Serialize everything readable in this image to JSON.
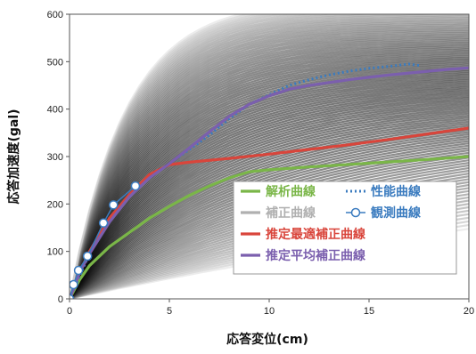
{
  "chart_data": {
    "type": "line",
    "title": "",
    "xlabel": "応答変位(cm)",
    "ylabel": "応答加速度(gal)",
    "xlim": [
      0,
      20
    ],
    "ylim": [
      0,
      600
    ],
    "xticks": [
      0,
      5,
      10,
      15,
      20
    ],
    "yticks": [
      0,
      100,
      200,
      300,
      400,
      500,
      600
    ],
    "xtick_labels": [
      "0",
      "5",
      "10",
      "15",
      "20"
    ],
    "ytick_labels": [
      "0",
      "100",
      "200",
      "300",
      "400",
      "500",
      "600"
    ],
    "grid": false,
    "legend_position": "bottom-right",
    "legend_entries": [
      {
        "name": "解析曲線",
        "style": "solid",
        "color": "#7ab648"
      },
      {
        "name": "性能曲線",
        "style": "dotted",
        "color": "#3a7bbf"
      },
      {
        "name": "補正曲線",
        "style": "solid",
        "color": "#b0b0b0"
      },
      {
        "name": "観測曲線",
        "style": "circle-line",
        "color": "#3a7bbf"
      },
      {
        "name": "推定最適補正曲線",
        "style": "solid",
        "color": "#d9453b"
      },
      {
        "name": "推定平均補正曲線",
        "style": "solid",
        "color": "#7b5fae"
      }
    ],
    "series": [
      {
        "name": "解析曲線",
        "color": "#7ab648",
        "x": [
          0,
          0.5,
          1,
          2,
          3,
          4,
          5,
          6,
          7,
          8,
          9,
          10,
          12,
          15,
          18,
          20
        ],
        "y": [
          0,
          40,
          70,
          110,
          140,
          170,
          195,
          218,
          238,
          255,
          268,
          272,
          278,
          286,
          294,
          300
        ]
      },
      {
        "name": "性能曲線",
        "color": "#3a7bbf",
        "x": [
          0,
          1,
          2,
          3,
          4,
          5,
          6,
          7,
          8,
          9,
          10,
          11,
          12,
          13,
          14,
          15,
          16,
          17,
          17.5
        ],
        "y": [
          0,
          95,
          165,
          220,
          255,
          285,
          315,
          345,
          380,
          410,
          430,
          450,
          462,
          472,
          480,
          486,
          490,
          495,
          492
        ]
      },
      {
        "name": "推定最適補正曲線",
        "color": "#d9453b",
        "x": [
          0,
          0.5,
          1,
          2,
          3,
          4,
          5,
          6,
          8,
          10,
          12,
          14,
          16,
          18,
          20
        ],
        "y": [
          0,
          55,
          100,
          170,
          220,
          262,
          283,
          288,
          296,
          305,
          315,
          325,
          336,
          348,
          360
        ]
      },
      {
        "name": "推定平均補正曲線",
        "color": "#7b5fae",
        "x": [
          0,
          0.5,
          1,
          2,
          3,
          4,
          5,
          6,
          7,
          8,
          9,
          10,
          11,
          12,
          13,
          14,
          15,
          16,
          17,
          18,
          19,
          20
        ],
        "y": [
          0,
          55,
          95,
          162,
          215,
          255,
          285,
          318,
          352,
          385,
          410,
          428,
          442,
          450,
          456,
          462,
          467,
          472,
          476,
          480,
          484,
          487
        ]
      },
      {
        "name": "観測曲線",
        "color": "#3a7bbf",
        "x": [
          0,
          0.2,
          0.45,
          0.9,
          1.7,
          2.2,
          3.3
        ],
        "y": [
          0,
          30,
          60,
          90,
          160,
          198,
          238
        ]
      }
    ]
  }
}
